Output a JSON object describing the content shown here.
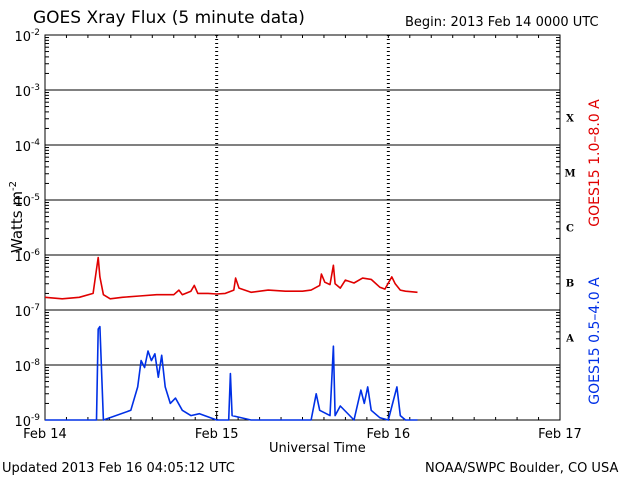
{
  "chart_data": {
    "type": "line",
    "title": "GOES Xray Flux (5 minute data)",
    "begin_label": "Begin:  2013 Feb 14 0000 UTC",
    "ylabel": "Watts m",
    "ylabel_sup": "-2",
    "xlabel": "Universal Time",
    "updated": "Updated 2013 Feb 16 04:05:12 UTC",
    "credit": "NOAA/SWPC Boulder, CO USA",
    "y_scale": "log",
    "ylim": [
      1e-09,
      0.01
    ],
    "xlim": [
      0,
      3
    ],
    "x_ticks": [
      {
        "x": 0,
        "label": "Feb 14"
      },
      {
        "x": 1,
        "label": "Feb 15"
      },
      {
        "x": 2,
        "label": "Feb 16"
      },
      {
        "x": 3,
        "label": "Feb 17"
      }
    ],
    "y_ticks": [
      {
        "exp": -2,
        "base": "10",
        "sup": "-2"
      },
      {
        "exp": -3,
        "base": "10",
        "sup": "-3"
      },
      {
        "exp": -4,
        "base": "10",
        "sup": "-4"
      },
      {
        "exp": -5,
        "base": "10",
        "sup": "-5"
      },
      {
        "exp": -6,
        "base": "10",
        "sup": "-6"
      },
      {
        "exp": -7,
        "base": "10",
        "sup": "-7"
      },
      {
        "exp": -8,
        "base": "10",
        "sup": "-8"
      },
      {
        "exp": -9,
        "base": "10",
        "sup": "-9"
      }
    ],
    "flare_classes": [
      {
        "label": "X",
        "exp": -3.5
      },
      {
        "label": "M",
        "exp": -4.5
      },
      {
        "label": "C",
        "exp": -5.5
      },
      {
        "label": "B",
        "exp": -6.5
      },
      {
        "label": "A",
        "exp": -7.5
      }
    ],
    "grid": true,
    "series": [
      {
        "name": "GOES15 1.0–8.0 A",
        "color": "#e00000",
        "points": [
          [
            0.0,
            1.7e-07
          ],
          [
            0.1,
            1.6e-07
          ],
          [
            0.2,
            1.7e-07
          ],
          [
            0.28,
            2e-07
          ],
          [
            0.3,
            5.5e-07
          ],
          [
            0.31,
            9e-07
          ],
          [
            0.32,
            4e-07
          ],
          [
            0.34,
            1.9e-07
          ],
          [
            0.38,
            1.6e-07
          ],
          [
            0.45,
            1.7e-07
          ],
          [
            0.55,
            1.8e-07
          ],
          [
            0.65,
            1.9e-07
          ],
          [
            0.75,
            1.9e-07
          ],
          [
            0.78,
            2.3e-07
          ],
          [
            0.8,
            1.9e-07
          ],
          [
            0.85,
            2.2e-07
          ],
          [
            0.87,
            2.8e-07
          ],
          [
            0.89,
            2e-07
          ],
          [
            0.95,
            2e-07
          ],
          [
            1.0,
            1.95e-07
          ],
          [
            1.05,
            2e-07
          ],
          [
            1.1,
            2.3e-07
          ],
          [
            1.11,
            3.8e-07
          ],
          [
            1.13,
            2.5e-07
          ],
          [
            1.2,
            2.1e-07
          ],
          [
            1.3,
            2.3e-07
          ],
          [
            1.4,
            2.2e-07
          ],
          [
            1.5,
            2.2e-07
          ],
          [
            1.55,
            2.3e-07
          ],
          [
            1.6,
            2.8e-07
          ],
          [
            1.61,
            4.5e-07
          ],
          [
            1.63,
            3.2e-07
          ],
          [
            1.66,
            2.9e-07
          ],
          [
            1.68,
            6.5e-07
          ],
          [
            1.69,
            3e-07
          ],
          [
            1.72,
            2.5e-07
          ],
          [
            1.75,
            3.5e-07
          ],
          [
            1.8,
            3.1e-07
          ],
          [
            1.85,
            3.8e-07
          ],
          [
            1.9,
            3.6e-07
          ],
          [
            1.95,
            2.6e-07
          ],
          [
            1.98,
            2.4e-07
          ],
          [
            2.02,
            4e-07
          ],
          [
            2.04,
            3e-07
          ],
          [
            2.07,
            2.3e-07
          ],
          [
            2.1,
            2.2e-07
          ],
          [
            2.17,
            2.1e-07
          ]
        ]
      },
      {
        "name": "GOES15 0.5–4.0 A",
        "color": "#0030e6",
        "points": [
          [
            0.0,
            1e-09
          ],
          [
            0.3,
            1e-09
          ],
          [
            0.31,
            4.5e-08
          ],
          [
            0.32,
            5e-08
          ],
          [
            0.34,
            1e-09
          ],
          [
            0.5,
            1.5e-09
          ],
          [
            0.54,
            4e-09
          ],
          [
            0.56,
            1.2e-08
          ],
          [
            0.58,
            9e-09
          ],
          [
            0.6,
            1.8e-08
          ],
          [
            0.62,
            1.2e-08
          ],
          [
            0.64,
            1.6e-08
          ],
          [
            0.66,
            6e-09
          ],
          [
            0.68,
            1.5e-08
          ],
          [
            0.7,
            4e-09
          ],
          [
            0.73,
            2e-09
          ],
          [
            0.76,
            2.5e-09
          ],
          [
            0.8,
            1.5e-09
          ],
          [
            0.85,
            1.2e-09
          ],
          [
            0.9,
            1.3e-09
          ],
          [
            1.0,
            1e-09
          ],
          [
            1.07,
            1e-09
          ],
          [
            1.08,
            7e-09
          ],
          [
            1.09,
            1.2e-09
          ],
          [
            1.2,
            1e-09
          ],
          [
            1.55,
            1e-09
          ],
          [
            1.58,
            3e-09
          ],
          [
            1.6,
            1.5e-09
          ],
          [
            1.66,
            1.2e-09
          ],
          [
            1.68,
            2.2e-08
          ],
          [
            1.69,
            1.2e-09
          ],
          [
            1.72,
            1.8e-09
          ],
          [
            1.8,
            1e-09
          ],
          [
            1.84,
            3.5e-09
          ],
          [
            1.86,
            2e-09
          ],
          [
            1.88,
            4e-09
          ],
          [
            1.9,
            1.5e-09
          ],
          [
            1.95,
            1.1e-09
          ],
          [
            2.0,
            1e-09
          ],
          [
            2.05,
            4e-09
          ],
          [
            2.07,
            1.2e-09
          ],
          [
            2.1,
            1e-09
          ],
          [
            2.17,
            1e-09
          ]
        ]
      }
    ]
  }
}
